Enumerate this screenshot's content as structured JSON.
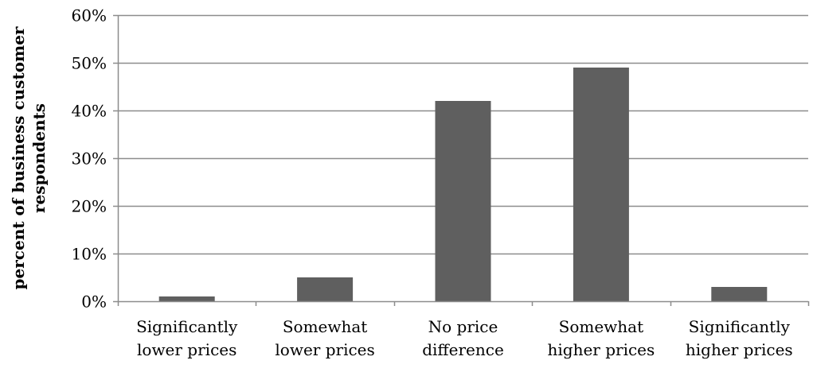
{
  "chart_data": {
    "type": "bar",
    "categories": [
      [
        "Significantly",
        "lower prices"
      ],
      [
        "Somewhat",
        "lower prices"
      ],
      [
        "No price",
        "difference"
      ],
      [
        "Somewhat",
        "higher prices"
      ],
      [
        "Significantly",
        "higher prices"
      ]
    ],
    "values": [
      1,
      5,
      42,
      49,
      3
    ],
    "title": "",
    "xlabel": "",
    "ylabel": [
      "percent of business customer",
      "respondents"
    ],
    "ylim": [
      0,
      60
    ],
    "yticks": [
      "0%",
      "10%",
      "20%",
      "30%",
      "40%",
      "50%",
      "60%"
    ],
    "ytick_values": [
      0,
      10,
      20,
      30,
      40,
      50,
      60
    ],
    "grid": true,
    "legend": "none",
    "colors": {
      "bar": "#5f5f5f",
      "grid": "#8c8c8c",
      "axis": "#8c8c8c"
    }
  }
}
